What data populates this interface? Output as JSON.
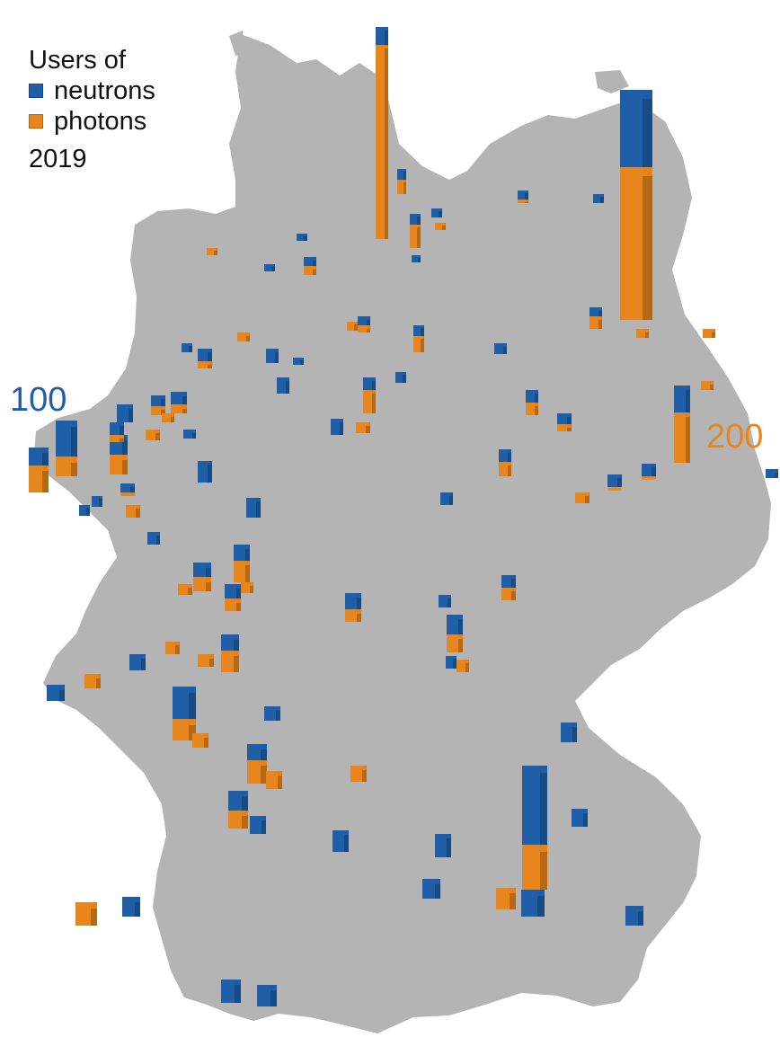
{
  "legend": {
    "title": "Users of",
    "items": [
      {
        "label": "neutrons",
        "color": "#1f5fa8"
      },
      {
        "label": "photons",
        "color": "#e8861e"
      }
    ],
    "year": "2019"
  },
  "scale_labels": {
    "neutrons": {
      "text": "100",
      "color": "#1f5fa8"
    },
    "photons": {
      "text": "200",
      "color": "#e8861e"
    }
  },
  "map": {
    "region_color": "#b4b4b4",
    "neutron_color": "#1f5fa8",
    "photon_color": "#e8861e"
  }
}
